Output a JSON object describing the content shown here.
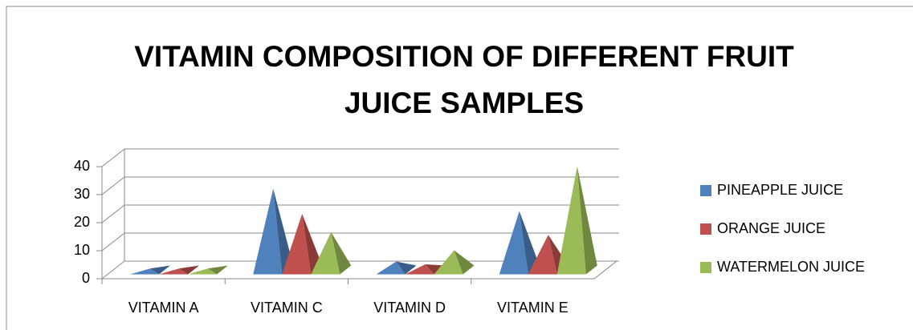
{
  "chart_data": {
    "type": "pyramid3d",
    "title": "VITAMIN COMPOSITION OF DIFFERENT FRUIT JUICE SAMPLES",
    "categories": [
      "VITAMIN A",
      "VITAMIN C",
      "VITAMIN D",
      "VITAMIN E"
    ],
    "series": [
      {
        "name": "PINEAPPLE JUICE",
        "color": "#4f81bd",
        "values": [
          0.5,
          29,
          3,
          21
        ]
      },
      {
        "name": "ORANGE JUICE",
        "color": "#c0504d",
        "values": [
          0.5,
          20,
          2,
          12.5
        ]
      },
      {
        "name": "WATERMELON JUICE",
        "color": "#9bbb59",
        "values": [
          0.5,
          13.5,
          7,
          37
        ]
      }
    ],
    "ylim": [
      0,
      40
    ],
    "yticks": [
      0,
      10,
      20,
      30,
      40
    ],
    "grid": true,
    "legend": "right"
  }
}
